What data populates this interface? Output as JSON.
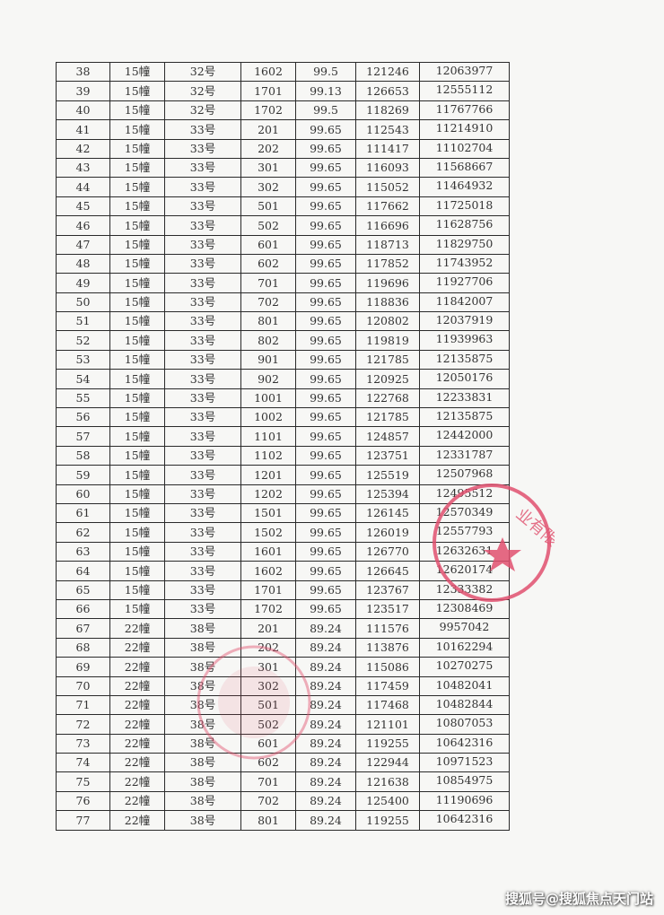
{
  "table": {
    "rows": [
      [
        "38",
        "15幢",
        "32号",
        "1602",
        "99.5",
        "121246",
        "12063977"
      ],
      [
        "39",
        "15幢",
        "32号",
        "1701",
        "99.13",
        "126653",
        "12555112"
      ],
      [
        "40",
        "15幢",
        "32号",
        "1702",
        "99.5",
        "118269",
        "11767766"
      ],
      [
        "41",
        "15幢",
        "33号",
        "201",
        "99.65",
        "112543",
        "11214910"
      ],
      [
        "42",
        "15幢",
        "33号",
        "202",
        "99.65",
        "111417",
        "11102704"
      ],
      [
        "43",
        "15幢",
        "33号",
        "301",
        "99.65",
        "116093",
        "11568667"
      ],
      [
        "44",
        "15幢",
        "33号",
        "302",
        "99.65",
        "115052",
        "11464932"
      ],
      [
        "45",
        "15幢",
        "33号",
        "501",
        "99.65",
        "117662",
        "11725018"
      ],
      [
        "46",
        "15幢",
        "33号",
        "502",
        "99.65",
        "116696",
        "11628756"
      ],
      [
        "47",
        "15幢",
        "33号",
        "601",
        "99.65",
        "118713",
        "11829750"
      ],
      [
        "48",
        "15幢",
        "33号",
        "602",
        "99.65",
        "117852",
        "11743952"
      ],
      [
        "49",
        "15幢",
        "33号",
        "701",
        "99.65",
        "119696",
        "11927706"
      ],
      [
        "50",
        "15幢",
        "33号",
        "702",
        "99.65",
        "118836",
        "11842007"
      ],
      [
        "51",
        "15幢",
        "33号",
        "801",
        "99.65",
        "120802",
        "12037919"
      ],
      [
        "52",
        "15幢",
        "33号",
        "802",
        "99.65",
        "119819",
        "11939963"
      ],
      [
        "53",
        "15幢",
        "33号",
        "901",
        "99.65",
        "121785",
        "12135875"
      ],
      [
        "54",
        "15幢",
        "33号",
        "902",
        "99.65",
        "120925",
        "12050176"
      ],
      [
        "55",
        "15幢",
        "33号",
        "1001",
        "99.65",
        "122768",
        "12233831"
      ],
      [
        "56",
        "15幢",
        "33号",
        "1002",
        "99.65",
        "121785",
        "12135875"
      ],
      [
        "57",
        "15幢",
        "33号",
        "1101",
        "99.65",
        "124857",
        "12442000"
      ],
      [
        "58",
        "15幢",
        "33号",
        "1102",
        "99.65",
        "123751",
        "12331787"
      ],
      [
        "59",
        "15幢",
        "33号",
        "1201",
        "99.65",
        "125519",
        "12507968"
      ],
      [
        "60",
        "15幢",
        "33号",
        "1202",
        "99.65",
        "125394",
        "12495512"
      ],
      [
        "61",
        "15幢",
        "33号",
        "1501",
        "99.65",
        "126145",
        "12570349"
      ],
      [
        "62",
        "15幢",
        "33号",
        "1502",
        "99.65",
        "126019",
        "12557793"
      ],
      [
        "63",
        "15幢",
        "33号",
        "1601",
        "99.65",
        "126770",
        "12632631"
      ],
      [
        "64",
        "15幢",
        "33号",
        "1602",
        "99.65",
        "126645",
        "12620174"
      ],
      [
        "65",
        "15幢",
        "33号",
        "1701",
        "99.65",
        "123767",
        "12333382"
      ],
      [
        "66",
        "15幢",
        "33号",
        "1702",
        "99.65",
        "123517",
        "12308469"
      ],
      [
        "67",
        "22幢",
        "38号",
        "201",
        "89.24",
        "111576",
        "9957042"
      ],
      [
        "68",
        "22幢",
        "38号",
        "202",
        "89.24",
        "113876",
        "10162294"
      ],
      [
        "69",
        "22幢",
        "38号",
        "301",
        "89.24",
        "115086",
        "10270275"
      ],
      [
        "70",
        "22幢",
        "38号",
        "302",
        "89.24",
        "117459",
        "10482041"
      ],
      [
        "71",
        "22幢",
        "38号",
        "501",
        "89.24",
        "117468",
        "10482844"
      ],
      [
        "72",
        "22幢",
        "38号",
        "502",
        "89.24",
        "121101",
        "10807053"
      ],
      [
        "73",
        "22幢",
        "38号",
        "601",
        "89.24",
        "119255",
        "10642316"
      ],
      [
        "74",
        "22幢",
        "38号",
        "602",
        "89.24",
        "122944",
        "10971523"
      ],
      [
        "75",
        "22幢",
        "38号",
        "701",
        "89.24",
        "121638",
        "10854975"
      ],
      [
        "76",
        "22幢",
        "38号",
        "702",
        "89.24",
        "125400",
        "11190696"
      ],
      [
        "77",
        "22幢",
        "38号",
        "801",
        "89.24",
        "119255",
        "10642316"
      ]
    ]
  },
  "stamps": {
    "color": "#e0506e",
    "right_stamp_text": "业有限公司",
    "left_stamp_text": ""
  },
  "watermark": "搜狐号@搜狐焦点天门站"
}
